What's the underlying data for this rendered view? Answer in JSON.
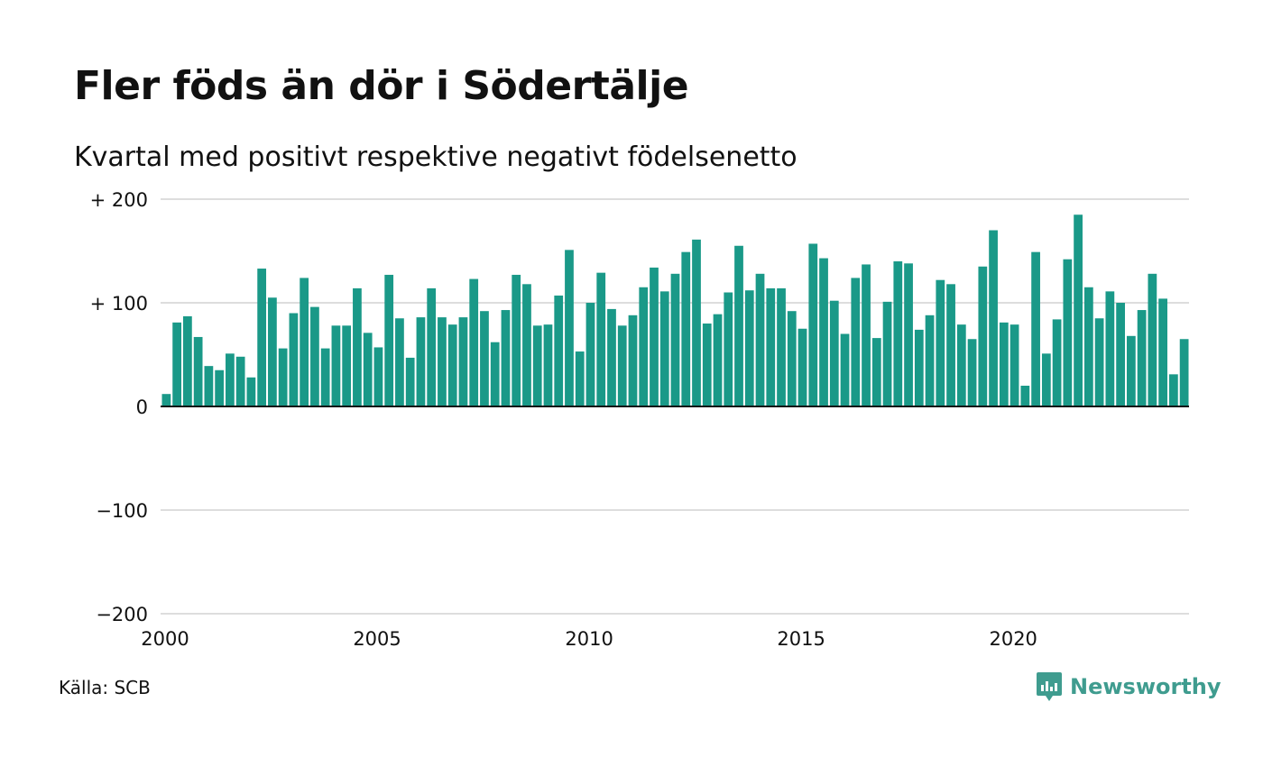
{
  "title": "Fler föds än dör i Södertälje",
  "subtitle": "Kvartal med positivt respektive negativt födelsenetto",
  "source": "Källa: SCB",
  "brand": {
    "name": "Newsworthy",
    "color": "#3f9c8f",
    "icon": "newsworthy-logo-icon"
  },
  "colors": {
    "positive_bar": "#1a9988",
    "gridline": "#dddddd",
    "baseline": "#111111"
  },
  "chart_data": {
    "type": "bar",
    "x_start_year": 2000,
    "periods_per_year": 4,
    "ylim": [
      -200,
      200
    ],
    "yticks": [
      {
        "value": 200,
        "label": "+ 200"
      },
      {
        "value": 100,
        "label": "+ 100"
      },
      {
        "value": 0,
        "label": "0"
      },
      {
        "value": -100,
        "label": "−100"
      },
      {
        "value": -200,
        "label": "−200"
      }
    ],
    "xticks": [
      "2000",
      "2005",
      "2010",
      "2015",
      "2020"
    ],
    "grid": true,
    "legend": "none",
    "values": [
      12,
      81,
      87,
      67,
      39,
      35,
      51,
      48,
      28,
      133,
      105,
      56,
      90,
      124,
      96,
      56,
      78,
      78,
      114,
      71,
      57,
      127,
      85,
      47,
      86,
      114,
      86,
      79,
      86,
      123,
      92,
      62,
      93,
      127,
      118,
      78,
      79,
      107,
      151,
      53,
      100,
      129,
      94,
      78,
      88,
      115,
      134,
      111,
      128,
      149,
      161,
      80,
      89,
      110,
      155,
      112,
      128,
      114,
      114,
      92,
      75,
      157,
      143,
      102,
      70,
      124,
      137,
      66,
      101,
      140,
      138,
      74,
      88,
      122,
      118,
      79,
      65,
      135,
      170,
      81,
      79,
      20,
      149,
      51,
      84,
      142,
      185,
      115,
      85,
      111,
      100,
      68,
      93,
      128,
      104,
      31,
      65
    ]
  }
}
